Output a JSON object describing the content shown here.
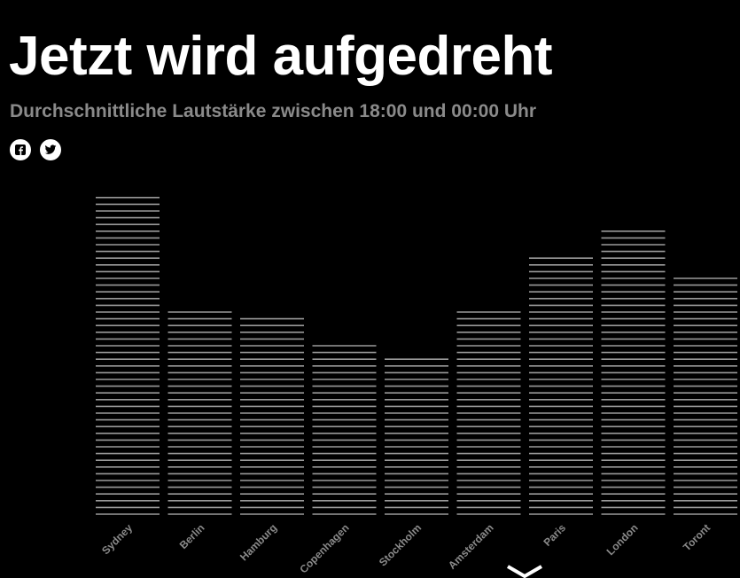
{
  "header": {
    "title": "Jetzt wird aufgedreht",
    "subtitle": "Durchschnittliche Lautstärke zwischen 18:00 und 00:00 Uhr"
  },
  "share": [
    {
      "icon": "facebook-icon"
    },
    {
      "icon": "twitter-icon"
    }
  ],
  "colors": {
    "background": "#000000",
    "bar_line": "#9a9a9a",
    "subtitle": "#8a8a8a"
  },
  "chart_data": {
    "type": "bar",
    "title": "Jetzt wird aufgedreht",
    "subtitle": "Durchschnittliche Lautstärke zwischen 18:00 und 00:00 Uhr",
    "categories": [
      "Sydney",
      "Berlin",
      "Hamburg",
      "Copenhagen",
      "Stockholm",
      "Amsterdam",
      "Paris",
      "London",
      "Toront"
    ],
    "values": [
      100,
      64,
      61,
      54,
      50,
      63,
      81,
      88,
      74
    ],
    "ylim": [
      0,
      100
    ],
    "grid": false,
    "legend": "none"
  }
}
